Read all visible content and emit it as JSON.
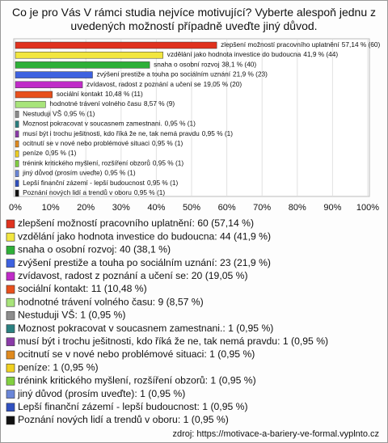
{
  "chart_data": {
    "type": "hbar",
    "title": "Co je pro Vás V rámci studia nejvíce motivující? Vyberte alespoň jednu z uvedených možností případně uveďte jiný důvod.",
    "categories": [
      "zlepšení možností pracovního uplatnění",
      "vzdělání jako hodnota investice do budoucna",
      "snaha o osobní rozvoj",
      "zvýšení prestiže a touha po sociálním uznání",
      "zvídavost, radost z poznání a učení se",
      "sociální kontakt",
      "hodnotné trávení volného času",
      "Nestuduji VŠ",
      "Moznost pokracovat v soucasnem zamestnani.",
      "musí být i trochu ješitnosti, kdo říká že ne, tak nemá pravdu",
      "ocitnutí se v nové nebo problémové situaci",
      "peníze",
      "trénink kritického myšlení, rozšíření obzorů",
      "jiný důvod (prosím uveďte)",
      "Lepší finanční zázemí - lepší budoucnost",
      "Poznání nových lidí a trendů v oboru"
    ],
    "values": [
      57.14,
      41.9,
      38.1,
      21.9,
      19.05,
      10.48,
      8.57,
      0.95,
      0.95,
      0.95,
      0.95,
      0.95,
      0.95,
      0.95,
      0.95,
      0.95
    ],
    "value_labels": [
      "57,14 % (60)",
      "41,9 % (44)",
      "38,1 % (40)",
      "21,9 % (23)",
      "19,05 % (20)",
      "10,48 % (11)",
      "8,57 % (9)",
      "0,95 % (1)",
      "0,95 % (1)",
      "0,95 % (1)",
      "0,95 % (1)",
      "0,95 % (1)",
      "0,95 % (1)",
      "0,95 % (1)",
      "0,95 % (1)",
      "0,95 % (1)"
    ],
    "colors": [
      "#e0321e",
      "#f2e640",
      "#2eb038",
      "#3e62e0",
      "#c02cc8",
      "#e8501c",
      "#a8e47a",
      "#8c8c8c",
      "#2a8080",
      "#8a3aa8",
      "#e08a1e",
      "#f0d020",
      "#82d040",
      "#6a86d8",
      "#3050c0",
      "#111111"
    ],
    "legend": [
      "zlepšení možností pracovního uplatnění: 60 (57,14 %)",
      "vzdělání jako hodnota investice do budoucna: 44 (41,9 %)",
      "snaha o osobní rozvoj: 40 (38,1 %)",
      "zvýšení prestiže a touha po sociálním uznání: 23 (21,9 %)",
      "zvídavost, radost z poznání a učení se: 20 (19,05 %)",
      "sociální kontakt: 11 (10,48 %)",
      "hodnotné trávení volného času: 9 (8,57 %)",
      "Nestuduji VŠ: 1 (0,95 %)",
      "Moznost pokracovat v soucasnem zamestnani.: 1 (0,95 %)",
      "musí být i trochu ješitnosti, kdo říká že ne, tak nemá pravdu: 1 (0,95 %)",
      "ocitnutí se v nové nebo problémové situaci: 1 (0,95 %)",
      "peníze: 1 (0,95 %)",
      "trénink kritického myšlení, rozšíření obzorů: 1 (0,95 %)",
      "jiný důvod (prosím uveďte): 1 (0,95 %)",
      "Lepší finanční zázemí - lepší budoucnost: 1 (0,95 %)",
      "Poznání nových lidí a trendů v oboru: 1 (0,95 %)"
    ],
    "xlim": [
      0,
      100
    ],
    "xticks": [
      {
        "value": 0,
        "label": "0%"
      },
      {
        "value": 10,
        "label": "10%"
      },
      {
        "value": 20,
        "label": "20%"
      },
      {
        "value": 30,
        "label": "30%"
      },
      {
        "value": 40,
        "label": "40%"
      },
      {
        "value": 50,
        "label": "50%"
      },
      {
        "value": 60,
        "label": "60%"
      },
      {
        "value": 70,
        "label": "70%"
      },
      {
        "value": 80,
        "label": "80%"
      },
      {
        "value": 90,
        "label": "90%"
      },
      {
        "value": 100,
        "label": "100%"
      }
    ],
    "grid": true,
    "source": "zdroj: https://motivace-a-bariery-ve-formal.vyplnto.cz"
  }
}
